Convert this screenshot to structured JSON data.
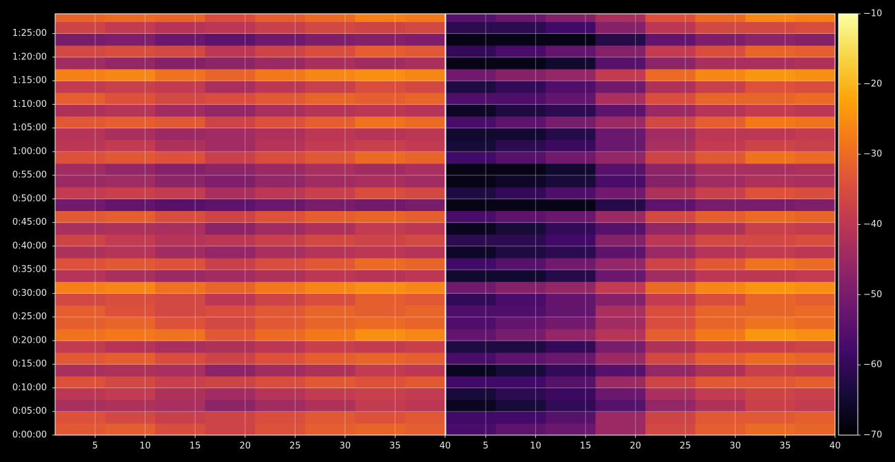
{
  "chart_data": [
    {
      "type": "heatmap",
      "colormap": "inferno",
      "grid": true,
      "x_bins": [
        1,
        6,
        11,
        16,
        21,
        26,
        31,
        36,
        40
      ],
      "y_bins": [
        0,
        150,
        300,
        450,
        600,
        750,
        900,
        1050,
        1200,
        1350,
        1500,
        1650,
        1800,
        1950,
        2100,
        2250,
        2400,
        2550,
        2700,
        2850,
        3000,
        3150,
        3300,
        3450,
        3600,
        3750,
        3900,
        4050,
        4200,
        4350,
        4500,
        4650,
        4800,
        4950,
        5100,
        5250,
        5350
      ],
      "xlim": [
        1,
        40
      ],
      "xticks": [
        5,
        10,
        15,
        20,
        25,
        30,
        35,
        40
      ],
      "ylim": [
        0,
        5350
      ],
      "yticks": [
        {
          "value": 0,
          "label": "0:00:00"
        },
        {
          "value": 300,
          "label": "0:05:00"
        },
        {
          "value": 600,
          "label": "0:10:00"
        },
        {
          "value": 900,
          "label": "0:15:00"
        },
        {
          "value": 1200,
          "label": "0:20:00"
        },
        {
          "value": 1500,
          "label": "0:25:00"
        },
        {
          "value": 1800,
          "label": "0:30:00"
        },
        {
          "value": 2100,
          "label": "0:35:00"
        },
        {
          "value": 2400,
          "label": "0:40:00"
        },
        {
          "value": 2700,
          "label": "0:45:00"
        },
        {
          "value": 3000,
          "label": "0:50:00"
        },
        {
          "value": 3300,
          "label": "0:55:00"
        },
        {
          "value": 3600,
          "label": "1:00:00"
        },
        {
          "value": 3900,
          "label": "1:05:00"
        },
        {
          "value": 4200,
          "label": "1:10:00"
        },
        {
          "value": 4500,
          "label": "1:15:00"
        },
        {
          "value": 4800,
          "label": "1:20:00"
        },
        {
          "value": 5100,
          "label": "1:25:00"
        }
      ],
      "values": [
        [
          -33,
          -32,
          -35,
          -37,
          -34,
          -32,
          -31,
          -32
        ],
        [
          -34,
          -36,
          -38,
          -37,
          -35,
          -33,
          -34,
          -33
        ],
        [
          -43,
          -42,
          -43,
          -47,
          -44,
          -42,
          -39,
          -40
        ],
        [
          -40,
          -39,
          -42,
          -44,
          -41,
          -39,
          -38,
          -39
        ],
        [
          -34,
          -36,
          -38,
          -37,
          -35,
          -33,
          -34,
          -33
        ],
        [
          -43,
          -42,
          -43,
          -47,
          -44,
          -42,
          -39,
          -40
        ],
        [
          -33,
          -32,
          -35,
          -37,
          -34,
          -32,
          -31,
          -32
        ],
        [
          -39,
          -41,
          -43,
          -42,
          -40,
          -38,
          -39,
          -38
        ],
        [
          -29,
          -28,
          -29,
          -33,
          -30,
          -28,
          -25,
          -26
        ],
        [
          -32,
          -31,
          -34,
          -36,
          -33,
          -31,
          -30,
          -31
        ],
        [
          -32,
          -34,
          -36,
          -35,
          -33,
          -31,
          -32,
          -31
        ],
        [
          -36,
          -35,
          -36,
          -40,
          -37,
          -35,
          -32,
          -33
        ],
        [
          -27,
          -26,
          -29,
          -31,
          -28,
          -26,
          -25,
          -26
        ],
        [
          -41,
          -43,
          -45,
          -44,
          -42,
          -40,
          -41,
          -40
        ],
        [
          -34,
          -33,
          -34,
          -38,
          -35,
          -33,
          -30,
          -31
        ],
        [
          -42,
          -41,
          -44,
          -46,
          -43,
          -41,
          -40,
          -41
        ],
        [
          -37,
          -39,
          -41,
          -40,
          -38,
          -36,
          -37,
          -36
        ],
        [
          -43,
          -42,
          -43,
          -47,
          -44,
          -42,
          -39,
          -40
        ],
        [
          -33,
          -32,
          -35,
          -37,
          -34,
          -32,
          -31,
          -32
        ],
        [
          -51,
          -53,
          -55,
          -54,
          -52,
          -50,
          -51,
          -50
        ],
        [
          -39,
          -38,
          -39,
          -43,
          -40,
          -38,
          -35,
          -36
        ],
        [
          -45,
          -44,
          -47,
          -49,
          -46,
          -44,
          -43,
          -44
        ],
        [
          -44,
          -46,
          -48,
          -47,
          -45,
          -43,
          -44,
          -43
        ],
        [
          -34,
          -33,
          -34,
          -38,
          -35,
          -33,
          -30,
          -31
        ],
        [
          -40,
          -39,
          -42,
          -44,
          -41,
          -39,
          -38,
          -39
        ],
        [
          -41,
          -43,
          -45,
          -44,
          -42,
          -40,
          -41,
          -40
        ],
        [
          -33,
          -32,
          -33,
          -37,
          -34,
          -32,
          -29,
          -30
        ],
        [
          -42,
          -41,
          -44,
          -46,
          -43,
          -41,
          -40,
          -41
        ],
        [
          -32,
          -34,
          -36,
          -35,
          -33,
          -31,
          -32,
          -31
        ],
        [
          -39,
          -38,
          -39,
          -43,
          -40,
          -38,
          -35,
          -36
        ],
        [
          -27,
          -26,
          -29,
          -31,
          -28,
          -26,
          -25,
          -26
        ],
        [
          -44,
          -46,
          -48,
          -47,
          -45,
          -43,
          -44,
          -43
        ],
        [
          -36,
          -35,
          -36,
          -40,
          -37,
          -35,
          -32,
          -33
        ],
        [
          -50,
          -49,
          -52,
          -54,
          -51,
          -49,
          -48,
          -49
        ],
        [
          -37,
          -39,
          -41,
          -40,
          -38,
          -36,
          -37,
          -36
        ],
        [
          -31,
          -30,
          -31,
          -35,
          -32,
          -30,
          -27,
          -28
        ]
      ]
    },
    {
      "type": "heatmap",
      "colormap": "inferno",
      "grid": true,
      "x_bins": [
        1,
        6,
        11,
        16,
        21,
        26,
        31,
        36,
        40
      ],
      "xlim": [
        1,
        40
      ],
      "xticks": [
        5,
        10,
        15,
        20,
        25,
        30,
        35,
        40
      ],
      "colorbar": {
        "lim": [
          -70,
          -10
        ],
        "ticks": [
          {
            "value": -70,
            "label": "−70"
          },
          {
            "value": -60,
            "label": "−60"
          },
          {
            "value": -50,
            "label": "−50"
          },
          {
            "value": -40,
            "label": "−40"
          },
          {
            "value": -30,
            "label": "−30"
          },
          {
            "value": -20,
            "label": "−20"
          },
          {
            "value": -10,
            "label": "−10"
          }
        ]
      },
      "values": [
        [
          -57,
          -54,
          -52,
          -45,
          -36,
          -32,
          -30,
          -31
        ],
        [
          -58,
          -58,
          -55,
          -45,
          -37,
          -33,
          -33,
          -32
        ],
        [
          -67,
          -64,
          -60,
          -55,
          -46,
          -42,
          -38,
          -39
        ],
        [
          -64,
          -61,
          -59,
          -52,
          -43,
          -39,
          -37,
          -38
        ],
        [
          -58,
          -58,
          -55,
          -45,
          -37,
          -33,
          -33,
          -32
        ],
        [
          -67,
          -64,
          -60,
          -55,
          -46,
          -42,
          -38,
          -39
        ],
        [
          -57,
          -54,
          -52,
          -45,
          -36,
          -32,
          -30,
          -31
        ],
        [
          -63,
          -63,
          -60,
          -50,
          -42,
          -38,
          -38,
          -37
        ],
        [
          -53,
          -50,
          -46,
          -41,
          -32,
          -28,
          -24,
          -25
        ],
        [
          -56,
          -53,
          -51,
          -44,
          -35,
          -31,
          -29,
          -30
        ],
        [
          -56,
          -56,
          -53,
          -43,
          -35,
          -31,
          -31,
          -30
        ],
        [
          -60,
          -57,
          -53,
          -48,
          -39,
          -35,
          -31,
          -32
        ],
        [
          -51,
          -48,
          -46,
          -39,
          -30,
          -26,
          -24,
          -25
        ],
        [
          -65,
          -65,
          -62,
          -52,
          -44,
          -40,
          -40,
          -39
        ],
        [
          -58,
          -55,
          -51,
          -46,
          -37,
          -33,
          -29,
          -30
        ],
        [
          -66,
          -63,
          -61,
          -54,
          -45,
          -41,
          -39,
          -40
        ],
        [
          -61,
          -61,
          -58,
          -48,
          -40,
          -36,
          -36,
          -35
        ],
        [
          -67,
          -64,
          -60,
          -55,
          -46,
          -42,
          -38,
          -39
        ],
        [
          -57,
          -54,
          -52,
          -45,
          -36,
          -32,
          -30,
          -31
        ],
        [
          -68,
          -68,
          -68,
          -62,
          -54,
          -50,
          -50,
          -49
        ],
        [
          -63,
          -60,
          -56,
          -51,
          -42,
          -38,
          -34,
          -35
        ],
        [
          -68,
          -66,
          -64,
          -57,
          -48,
          -44,
          -42,
          -43
        ],
        [
          -68,
          -68,
          -65,
          -55,
          -47,
          -43,
          -43,
          -42
        ],
        [
          -58,
          -55,
          -51,
          -46,
          -37,
          -33,
          -29,
          -30
        ],
        [
          -64,
          -61,
          -59,
          -52,
          -43,
          -39,
          -37,
          -38
        ],
        [
          -65,
          -65,
          -62,
          -52,
          -44,
          -40,
          -40,
          -39
        ],
        [
          -57,
          -54,
          -50,
          -45,
          -36,
          -32,
          -28,
          -29
        ],
        [
          -66,
          -63,
          -61,
          -54,
          -45,
          -41,
          -39,
          -40
        ],
        [
          -56,
          -56,
          -53,
          -43,
          -35,
          -31,
          -31,
          -30
        ],
        [
          -63,
          -60,
          -56,
          -51,
          -42,
          -38,
          -34,
          -35
        ],
        [
          -51,
          -48,
          -46,
          -39,
          -30,
          -26,
          -24,
          -25
        ],
        [
          -68,
          -68,
          -65,
          -55,
          -47,
          -43,
          -43,
          -42
        ],
        [
          -60,
          -57,
          -53,
          -48,
          -39,
          -35,
          -31,
          -32
        ],
        [
          -68,
          -68,
          -68,
          -62,
          -53,
          -49,
          -47,
          -48
        ],
        [
          -61,
          -61,
          -58,
          -48,
          -40,
          -36,
          -36,
          -35
        ],
        [
          -55,
          -52,
          -48,
          -43,
          -34,
          -30,
          -26,
          -27
        ]
      ]
    }
  ]
}
